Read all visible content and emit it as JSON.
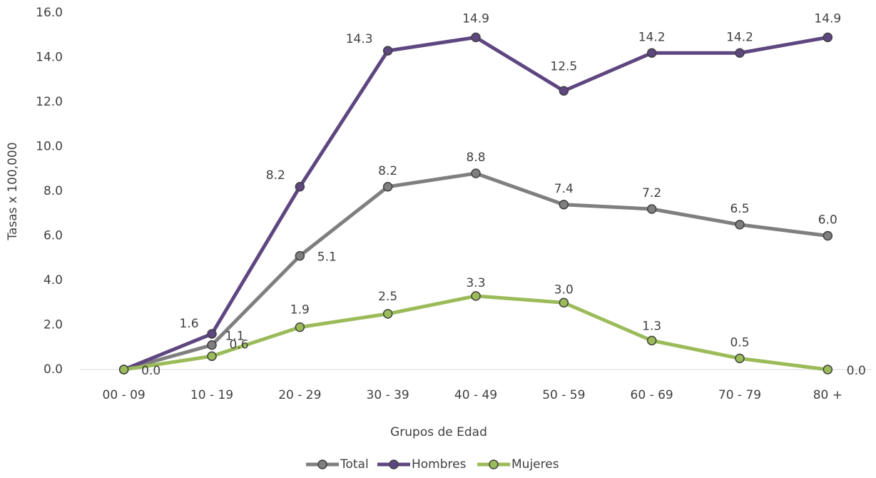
{
  "chart_data": {
    "type": "line",
    "x_label": "Grupos de Edad",
    "y_label": "Tasas x 100,000",
    "categories": [
      "00 - 09",
      "10 - 19",
      "20 - 29",
      "30 - 39",
      "40 - 49",
      "50 - 59",
      "60 - 69",
      "70 - 79",
      "80 +"
    ],
    "series": [
      {
        "name": "Total",
        "color": "#7f7f7f",
        "values": [
          0,
          1.1,
          5.1,
          8.2,
          8.8,
          7.4,
          7.2,
          6.5,
          6.0
        ],
        "value_labels": [
          null,
          "1.1",
          "5.1",
          "8.2",
          "8.8",
          "7.4",
          "7.2",
          "6.5",
          "6.0"
        ]
      },
      {
        "name": "Hombres",
        "color": "#5e4680",
        "values": [
          0,
          1.6,
          8.2,
          14.3,
          14.9,
          12.5,
          14.2,
          14.2,
          14.9
        ],
        "value_labels": [
          null,
          "1.6",
          "8.2",
          "14.3",
          "14.9",
          "12.5",
          "14.2",
          "14.2",
          "14.9"
        ]
      },
      {
        "name": "Mujeres",
        "color": "#9bbb59",
        "values": [
          0,
          0.6,
          1.9,
          2.5,
          3.3,
          3.0,
          1.3,
          0.5,
          0.0
        ],
        "value_labels": [
          "0.0",
          "0.6",
          "1.9",
          "2.5",
          "3.3",
          "3.0",
          "1.3",
          "0.5",
          "0.0"
        ]
      }
    ],
    "ylim": [
      0,
      16
    ],
    "yticks": [
      {
        "value": 0,
        "label": "0.0"
      },
      {
        "value": 2,
        "label": "2.0"
      },
      {
        "value": 4,
        "label": "4.0"
      },
      {
        "value": 6,
        "label": "6.0"
      },
      {
        "value": 8,
        "label": "8.0"
      },
      {
        "value": 10,
        "label": "10.0"
      },
      {
        "value": 12,
        "label": "12.0"
      },
      {
        "value": 14,
        "label": "14.0"
      },
      {
        "value": 16,
        "label": "16.0"
      }
    ],
    "legend": "bottom"
  }
}
